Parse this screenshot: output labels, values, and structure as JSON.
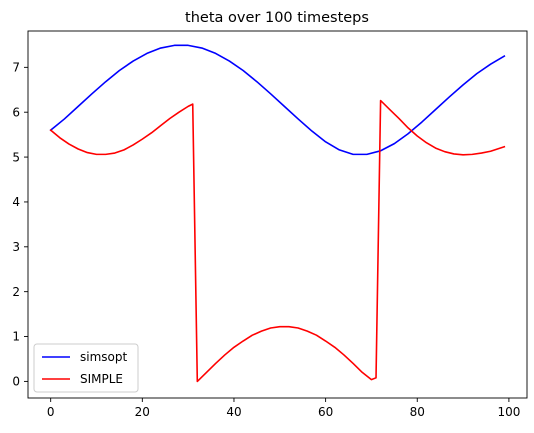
{
  "chart_data": {
    "type": "line",
    "title": "theta over 100 timesteps",
    "xlabel": "",
    "ylabel": "",
    "xlim": [
      -4.95,
      103.95
    ],
    "ylim": [
      -0.37,
      7.81
    ],
    "xticks": [
      0,
      20,
      40,
      60,
      80,
      100
    ],
    "yticks": [
      0,
      1,
      2,
      3,
      4,
      5,
      6,
      7
    ],
    "xtick_labels": [
      "0",
      "20",
      "40",
      "60",
      "80",
      "100"
    ],
    "ytick_labels": [
      "0",
      "1",
      "2",
      "3",
      "4",
      "5",
      "6",
      "7"
    ],
    "grid": false,
    "legend": "lower-left",
    "series": [
      {
        "name": "simsopt",
        "color": "#0000ff",
        "x": [
          0,
          3,
          6,
          9,
          12,
          15,
          18,
          21,
          24,
          27,
          30,
          33,
          36,
          39,
          42,
          45,
          48,
          51,
          54,
          57,
          60,
          63,
          66,
          69,
          72,
          75,
          78,
          81,
          84,
          87,
          90,
          93,
          96,
          99
        ],
        "y": [
          5.6,
          5.85,
          6.13,
          6.41,
          6.68,
          6.93,
          7.14,
          7.31,
          7.43,
          7.49,
          7.49,
          7.43,
          7.31,
          7.14,
          6.93,
          6.68,
          6.41,
          6.13,
          5.85,
          5.58,
          5.34,
          5.16,
          5.06,
          5.06,
          5.14,
          5.3,
          5.52,
          5.78,
          6.06,
          6.34,
          6.61,
          6.86,
          7.07,
          7.25
        ]
      },
      {
        "name": "SIMPLE",
        "color": "#ff0000",
        "x": [
          0,
          2,
          4,
          6,
          8,
          10,
          12,
          14,
          16,
          18,
          20,
          22,
          24,
          26,
          28,
          30,
          31,
          32,
          34,
          36,
          38,
          40,
          42,
          44,
          46,
          48,
          50,
          52,
          54,
          56,
          58,
          60,
          62,
          64,
          66,
          68,
          70,
          71,
          72,
          74,
          76,
          78,
          80,
          82,
          84,
          86,
          88,
          90,
          92,
          94,
          96,
          99
        ],
        "y": [
          5.6,
          5.43,
          5.29,
          5.18,
          5.1,
          5.06,
          5.06,
          5.09,
          5.16,
          5.27,
          5.4,
          5.54,
          5.7,
          5.86,
          6.0,
          6.13,
          6.18,
          0.0,
          0.2,
          0.4,
          0.59,
          0.76,
          0.9,
          1.03,
          1.12,
          1.19,
          1.22,
          1.22,
          1.19,
          1.12,
          1.03,
          0.9,
          0.76,
          0.59,
          0.4,
          0.2,
          0.04,
          0.08,
          6.26,
          6.06,
          5.86,
          5.65,
          5.47,
          5.32,
          5.2,
          5.12,
          5.07,
          5.05,
          5.06,
          5.09,
          5.13,
          5.23
        ]
      }
    ]
  }
}
